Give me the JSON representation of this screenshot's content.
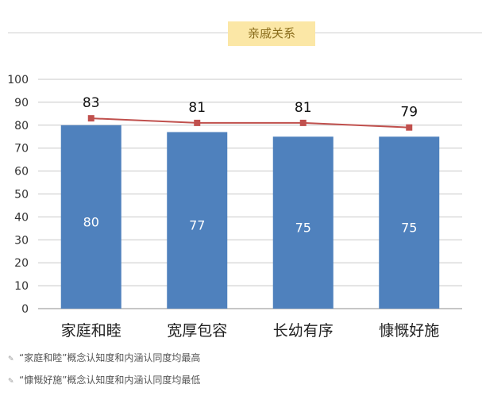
{
  "section_title": "亲戚关系",
  "chart_data": {
    "type": "bar",
    "categories": [
      "家庭和睦",
      "宽厚包容",
      "长幼有序",
      "慷慨好施"
    ],
    "series": [
      {
        "type": "bar",
        "values": [
          80,
          77,
          75,
          75
        ],
        "color": "#4f81bd"
      },
      {
        "type": "line",
        "values": [
          83,
          81,
          81,
          79
        ],
        "color": "#c0504d"
      }
    ],
    "ylim": [
      0,
      100
    ],
    "yticks": [
      "0",
      "10",
      "20",
      "30",
      "40",
      "50",
      "60",
      "70",
      "80",
      "90",
      "100"
    ],
    "grid": true,
    "title": "",
    "xlabel": "",
    "ylabel": ""
  },
  "notes": [
    "“家庭和睦”概念认知度和内涵认同度均最高",
    "“慷慨好施”概念认知度和内涵认同度均最低"
  ]
}
